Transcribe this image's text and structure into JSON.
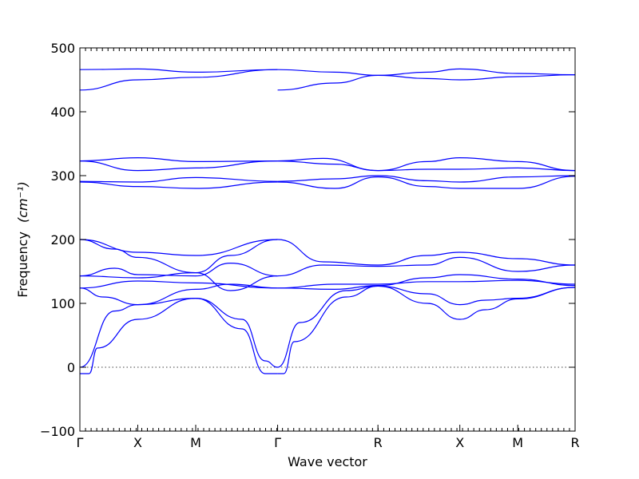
{
  "chart_data": {
    "type": "line",
    "title": "",
    "xlabel": "Wave vector",
    "ylabel": "Frequency",
    "ylabel_unit": "(cm⁻¹)",
    "ylim": [
      -100,
      500
    ],
    "yticks": [
      -100,
      0,
      100,
      200,
      300,
      400,
      500
    ],
    "grid": false,
    "legend": "none",
    "line_color": "#0000ff",
    "zero_line": true,
    "k_points": [
      {
        "label": "Γ",
        "x": 0.0
      },
      {
        "label": "X",
        "x": 0.5
      },
      {
        "label": "M",
        "x": 1.0
      },
      {
        "label": "Γ",
        "x": 1.707
      },
      {
        "label": "R",
        "x": 2.573
      },
      {
        "label": "X",
        "x": 3.28
      },
      {
        "label": "M",
        "x": 3.78
      },
      {
        "label": "R",
        "x": 4.275
      }
    ],
    "series": [
      {
        "values": [
          [
            0,
            -10
          ],
          [
            0.08,
            -10
          ],
          [
            0.15,
            30
          ],
          [
            0.5,
            75
          ],
          [
            1.0,
            108
          ],
          [
            1.4,
            60
          ],
          [
            1.6,
            -10
          ],
          [
            1.707,
            -10
          ]
        ]
      },
      {
        "values": [
          [
            0,
            0
          ],
          [
            0.3,
            88
          ],
          [
            0.5,
            98
          ],
          [
            1.0,
            108
          ],
          [
            1.4,
            75
          ],
          [
            1.6,
            10
          ],
          [
            1.707,
            0
          ]
        ]
      },
      {
        "values": [
          [
            0,
            124
          ],
          [
            0.2,
            110
          ],
          [
            0.5,
            98
          ],
          [
            1.0,
            122
          ],
          [
            1.3,
            130
          ],
          [
            1.707,
            124
          ]
        ]
      },
      {
        "values": [
          [
            0,
            124
          ],
          [
            0.5,
            135
          ],
          [
            1.0,
            132
          ],
          [
            1.707,
            124
          ]
        ]
      },
      {
        "values": [
          [
            0,
            143
          ],
          [
            0.3,
            155
          ],
          [
            0.5,
            145
          ],
          [
            1.0,
            143
          ],
          [
            1.3,
            163
          ],
          [
            1.707,
            143
          ]
        ]
      },
      {
        "values": [
          [
            0,
            143
          ],
          [
            0.5,
            140
          ],
          [
            1.0,
            148
          ],
          [
            1.3,
            120
          ],
          [
            1.707,
            143
          ]
        ]
      },
      {
        "values": [
          [
            0,
            200
          ],
          [
            0.3,
            185
          ],
          [
            0.5,
            172
          ],
          [
            1.0,
            148
          ],
          [
            1.3,
            175
          ],
          [
            1.707,
            200
          ]
        ]
      },
      {
        "values": [
          [
            0,
            200
          ],
          [
            0.5,
            180
          ],
          [
            1.0,
            175
          ],
          [
            1.707,
            200
          ]
        ]
      },
      {
        "values": [
          [
            0,
            290
          ],
          [
            0.5,
            283
          ],
          [
            1.0,
            280
          ],
          [
            1.707,
            290
          ]
        ]
      },
      {
        "values": [
          [
            0,
            291
          ],
          [
            0.5,
            290
          ],
          [
            1.0,
            297
          ],
          [
            1.707,
            291
          ]
        ]
      },
      {
        "values": [
          [
            0,
            323
          ],
          [
            0.5,
            308
          ],
          [
            1.0,
            312
          ],
          [
            1.707,
            323
          ]
        ]
      },
      {
        "values": [
          [
            0,
            323
          ],
          [
            0.5,
            328
          ],
          [
            1.0,
            322
          ],
          [
            1.707,
            323
          ]
        ]
      },
      {
        "values": [
          [
            0,
            434
          ],
          [
            0.5,
            450
          ],
          [
            1.0,
            454
          ],
          [
            1.707,
            466
          ]
        ]
      },
      {
        "values": [
          [
            0,
            466
          ],
          [
            0.5,
            467
          ],
          [
            1.0,
            462
          ],
          [
            1.707,
            466
          ]
        ]
      },
      {
        "values": [
          [
            1.707,
            -10
          ],
          [
            1.76,
            -10
          ],
          [
            1.85,
            40
          ],
          [
            2.3,
            110
          ],
          [
            2.573,
            127
          ],
          [
            3.0,
            100
          ],
          [
            3.28,
            75
          ],
          [
            3.5,
            90
          ],
          [
            3.78,
            107
          ],
          [
            4.275,
            125
          ]
        ]
      },
      {
        "values": [
          [
            1.707,
            0
          ],
          [
            1.9,
            70
          ],
          [
            2.3,
            120
          ],
          [
            2.573,
            127
          ],
          [
            3.0,
            115
          ],
          [
            3.28,
            98
          ],
          [
            3.5,
            105
          ],
          [
            3.78,
            108
          ],
          [
            4.275,
            125
          ]
        ]
      },
      {
        "values": [
          [
            1.707,
            124
          ],
          [
            2.2,
            130
          ],
          [
            2.573,
            130
          ],
          [
            3.0,
            134
          ],
          [
            3.28,
            134
          ],
          [
            3.78,
            136
          ],
          [
            4.275,
            130
          ]
        ]
      },
      {
        "values": [
          [
            1.707,
            124
          ],
          [
            2.2,
            122
          ],
          [
            2.573,
            128
          ],
          [
            3.0,
            140
          ],
          [
            3.28,
            145
          ],
          [
            3.78,
            138
          ],
          [
            4.275,
            128
          ]
        ]
      },
      {
        "values": [
          [
            1.707,
            143
          ],
          [
            2.1,
            160
          ],
          [
            2.573,
            158
          ],
          [
            3.0,
            160
          ],
          [
            3.28,
            172
          ],
          [
            3.78,
            150
          ],
          [
            4.275,
            160
          ]
        ]
      },
      {
        "values": [
          [
            1.707,
            200
          ],
          [
            2.1,
            165
          ],
          [
            2.573,
            160
          ],
          [
            3.0,
            175
          ],
          [
            3.28,
            180
          ],
          [
            3.78,
            170
          ],
          [
            4.275,
            160
          ]
        ]
      },
      {
        "values": [
          [
            1.707,
            290
          ],
          [
            2.2,
            280
          ],
          [
            2.573,
            298
          ],
          [
            3.0,
            283
          ],
          [
            3.28,
            280
          ],
          [
            3.78,
            280
          ],
          [
            4.275,
            299
          ]
        ]
      },
      {
        "values": [
          [
            1.707,
            291
          ],
          [
            2.2,
            295
          ],
          [
            2.573,
            300
          ],
          [
            3.0,
            292
          ],
          [
            3.28,
            290
          ],
          [
            3.78,
            298
          ],
          [
            4.275,
            300
          ]
        ]
      },
      {
        "values": [
          [
            1.707,
            323
          ],
          [
            2.2,
            318
          ],
          [
            2.573,
            308
          ],
          [
            3.0,
            310
          ],
          [
            3.28,
            310
          ],
          [
            3.78,
            312
          ],
          [
            4.275,
            308
          ]
        ]
      },
      {
        "values": [
          [
            1.707,
            323
          ],
          [
            2.1,
            327
          ],
          [
            2.573,
            308
          ],
          [
            3.0,
            322
          ],
          [
            3.28,
            328
          ],
          [
            3.78,
            322
          ],
          [
            4.275,
            308
          ]
        ]
      },
      {
        "values": [
          [
            1.707,
            434
          ],
          [
            2.2,
            445
          ],
          [
            2.573,
            457
          ],
          [
            3.0,
            462
          ],
          [
            3.28,
            467
          ],
          [
            3.78,
            460
          ],
          [
            4.275,
            458
          ]
        ]
      },
      {
        "values": [
          [
            1.707,
            466
          ],
          [
            2.2,
            462
          ],
          [
            2.573,
            457
          ],
          [
            3.0,
            452
          ],
          [
            3.28,
            450
          ],
          [
            3.78,
            455
          ],
          [
            4.275,
            458
          ]
        ]
      }
    ]
  }
}
